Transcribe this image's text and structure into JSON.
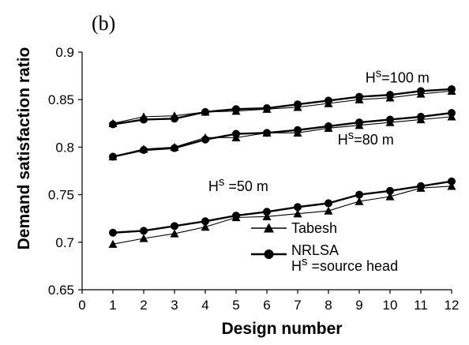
{
  "chart_data": {
    "type": "line",
    "panel_label": "(b)",
    "xlabel": "Design number",
    "ylabel": "Demand satisfaction ratio",
    "xlim": [
      0,
      12
    ],
    "ylim": [
      0.65,
      0.9
    ],
    "x_ticks": [
      "0",
      "1",
      "2",
      "3",
      "4",
      "5",
      "6",
      "7",
      "8",
      "9",
      "10",
      "11",
      "12"
    ],
    "y_ticks": [
      "0.65",
      "0.7",
      "0.75",
      "0.8",
      "0.85",
      "0.9"
    ],
    "x": [
      1,
      2,
      3,
      4,
      5,
      6,
      7,
      8,
      9,
      10,
      11,
      12
    ],
    "grid": false,
    "series": [
      {
        "name": "Tabesh",
        "group": "Hs=100 m",
        "marker": "triangle",
        "values": [
          0.825,
          0.832,
          0.833,
          0.837,
          0.838,
          0.84,
          0.842,
          0.846,
          0.85,
          0.852,
          0.856,
          0.859
        ]
      },
      {
        "name": "NRLSA",
        "group": "Hs=100 m",
        "marker": "circle",
        "values": [
          0.824,
          0.829,
          0.83,
          0.837,
          0.84,
          0.841,
          0.845,
          0.849,
          0.853,
          0.855,
          0.859,
          0.861
        ]
      },
      {
        "name": "Tabesh",
        "group": "Hs=80 m",
        "marker": "triangle",
        "values": [
          0.79,
          0.798,
          0.8,
          0.81,
          0.81,
          0.815,
          0.815,
          0.82,
          0.823,
          0.826,
          0.829,
          0.832
        ]
      },
      {
        "name": "NRLSA",
        "group": "Hs=80 m",
        "marker": "circle",
        "values": [
          0.79,
          0.797,
          0.799,
          0.808,
          0.814,
          0.815,
          0.818,
          0.822,
          0.826,
          0.829,
          0.832,
          0.836
        ]
      },
      {
        "name": "Tabesh",
        "group": "Hs=50 m",
        "marker": "triangle",
        "values": [
          0.698,
          0.704,
          0.709,
          0.716,
          0.726,
          0.727,
          0.73,
          0.733,
          0.743,
          0.748,
          0.757,
          0.759
        ]
      },
      {
        "name": "NRLSA",
        "group": "Hs=50 m",
        "marker": "circle",
        "values": [
          0.71,
          0.712,
          0.717,
          0.722,
          0.728,
          0.732,
          0.737,
          0.741,
          0.75,
          0.754,
          0.759,
          0.764
        ]
      }
    ],
    "annotations": [
      {
        "main": "H",
        "sup": "s",
        "rest": "=100 m",
        "at": [
          9.2,
          0.868
        ]
      },
      {
        "main": "H",
        "sup": "s",
        "rest": "=80 m",
        "at": [
          8.3,
          0.803
        ]
      },
      {
        "main": "H",
        "sup": "s",
        "rest": " =50 m",
        "at": [
          4.1,
          0.754
        ]
      }
    ],
    "legend": {
      "placement": "lower-right",
      "entries": [
        {
          "label": "Tabesh",
          "marker": "triangle"
        },
        {
          "label": "NRLSA",
          "marker": "circle"
        }
      ],
      "note": {
        "main": "H",
        "sup": "s",
        "rest": " =source head"
      }
    }
  }
}
